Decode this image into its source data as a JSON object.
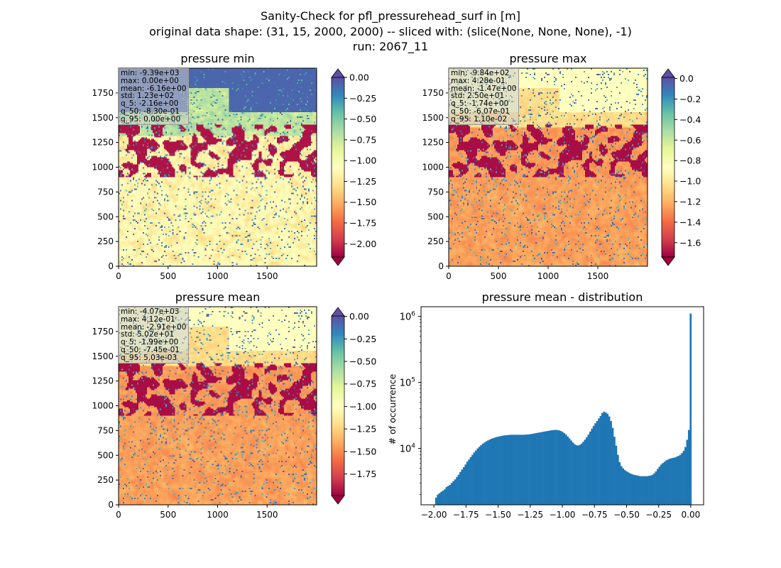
{
  "figure": {
    "title_line1": "Sanity-Check for pfl_pressurehead_surf in [m]",
    "title_line2": "original data shape: (31, 15, 2000, 2000) -- sliced with: (slice(None, None, None), -1)",
    "title_line3": "run: 2067_11"
  },
  "chart_data": [
    {
      "type": "heatmap",
      "title": "pressure min",
      "x_ticks": [
        0,
        500,
        1000,
        1500
      ],
      "y_ticks": [
        0,
        250,
        500,
        750,
        1000,
        1250,
        1500,
        1750
      ],
      "xlim": [
        0,
        2000
      ],
      "ylim": [
        0,
        2000
      ],
      "colormap": "Spectral",
      "colorbar": {
        "vmin": -2.16,
        "vmax": 0.0,
        "ticks": [
          "0.00",
          "-0.25",
          "-0.50",
          "-0.75",
          "-1.00",
          "-1.25",
          "-1.50",
          "-1.75",
          "-2.00"
        ],
        "extend": "both"
      },
      "stats": [
        "min: -9.39e+03",
        "max: 0.00e+00",
        "mean: -6.16e+00",
        "std: 1.23e+02",
        "q_5: -2.16e+00",
        "q_50: -8.30e-01",
        "q_95: 0.00e+00"
      ]
    },
    {
      "type": "heatmap",
      "title": "pressure max",
      "x_ticks": [
        0,
        500,
        1000,
        1500
      ],
      "y_ticks": [
        0,
        250,
        500,
        750,
        1000,
        1250,
        1500,
        1750
      ],
      "xlim": [
        0,
        2000
      ],
      "ylim": [
        0,
        2000
      ],
      "colormap": "Spectral",
      "colorbar": {
        "vmin": -1.74,
        "vmax": 0.011,
        "ticks": [
          "0.0",
          "-0.2",
          "-0.4",
          "-0.6",
          "-0.8",
          "-1.0",
          "-1.2",
          "-1.4",
          "-1.6"
        ],
        "extend": "both"
      },
      "stats": [
        "min: -9.84e+02",
        "max: 4.28e-01",
        "mean: -1.47e+00",
        "std: 2.50e+01",
        "q_5: -1.74e+00",
        "q_50: -6.07e-01",
        "q_95: 1.10e-02"
      ]
    },
    {
      "type": "heatmap",
      "title": "pressure mean",
      "x_ticks": [
        0,
        500,
        1000,
        1500
      ],
      "y_ticks": [
        0,
        250,
        500,
        750,
        1000,
        1250,
        1500,
        1750
      ],
      "xlim": [
        0,
        2000
      ],
      "ylim": [
        0,
        2000
      ],
      "colormap": "Spectral",
      "colorbar": {
        "vmin": -1.99,
        "vmax": 0.005,
        "ticks": [
          "0.00",
          "-0.25",
          "-0.50",
          "-0.75",
          "-1.00",
          "-1.25",
          "-1.50",
          "-1.75"
        ],
        "extend": "both"
      },
      "stats": [
        "min: -4.07e+03",
        "max: 4.12e-01",
        "mean: -2.91e+00",
        "std: 5.02e+01",
        "q_5: -1.99e+00",
        "q_50: -7.45e-01",
        "q_95: 5.03e-03"
      ]
    },
    {
      "type": "bar",
      "title": "pressure mean - distribution",
      "ylabel": "# of occurrence",
      "xlabel": "",
      "yscale": "log",
      "xlim": [
        -2.1,
        0.1
      ],
      "ylim": [
        1400,
        1400000
      ],
      "x_ticks": [
        "−2.00",
        "−1.75",
        "−1.50",
        "−1.25",
        "−1.00",
        "−0.75",
        "−0.50",
        "−0.25",
        "0.00"
      ],
      "x_tick_values": [
        -2.0,
        -1.75,
        -1.5,
        -1.25,
        -1.0,
        -0.75,
        -0.5,
        -0.25,
        0.0
      ],
      "y_ticks": [
        {
          "label_base": "10",
          "label_exp": "4",
          "value": 10000
        },
        {
          "label_base": "10",
          "label_exp": "5",
          "value": 100000
        },
        {
          "label_base": "10",
          "label_exp": "6",
          "value": 1000000
        }
      ],
      "color": "#1f77b4",
      "bins": {
        "start": -1.99,
        "end": 0.005,
        "counts": [
          1800,
          2000,
          2100,
          2200,
          2300,
          2400,
          2600,
          2700,
          2800,
          3000,
          3200,
          3400,
          3700,
          4000,
          4400,
          4800,
          5200,
          5700,
          6300,
          6800,
          7400,
          8000,
          8700,
          9300,
          10000,
          10600,
          11200,
          11800,
          12300,
          12800,
          13200,
          13600,
          14000,
          14300,
          14600,
          14900,
          15100,
          15300,
          15500,
          15700,
          15800,
          15900,
          16000,
          16100,
          16100,
          16100,
          16100,
          16100,
          16100,
          16100,
          16100,
          16100,
          16200,
          16300,
          16400,
          16500,
          16700,
          16900,
          17100,
          17300,
          17500,
          17700,
          17900,
          18100,
          18300,
          18500,
          18700,
          18900,
          19000,
          19100,
          19000,
          18800,
          18400,
          17800,
          17100,
          16200,
          15200,
          14200,
          13200,
          12300,
          11600,
          11200,
          11100,
          11300,
          11800,
          12600,
          13600,
          14800,
          16200,
          18000,
          20000,
          22000,
          24000,
          26000,
          28500,
          31000,
          34500,
          36000,
          35000,
          33500,
          30500,
          26000,
          20500,
          15000,
          11000,
          8000,
          6200,
          5400,
          5000,
          4700,
          4500,
          4350,
          4200,
          4100,
          4000,
          3950,
          3900,
          3850,
          3800,
          3800,
          3800,
          3800,
          3800,
          3850,
          3900,
          4000,
          4200,
          4500,
          4900,
          5300,
          5700,
          6000,
          6300,
          6600,
          6800,
          7000,
          7100,
          7200,
          7300,
          7500,
          7700,
          8000,
          8500,
          9200,
          10500,
          13500,
          19000,
          1100000
        ]
      }
    }
  ]
}
